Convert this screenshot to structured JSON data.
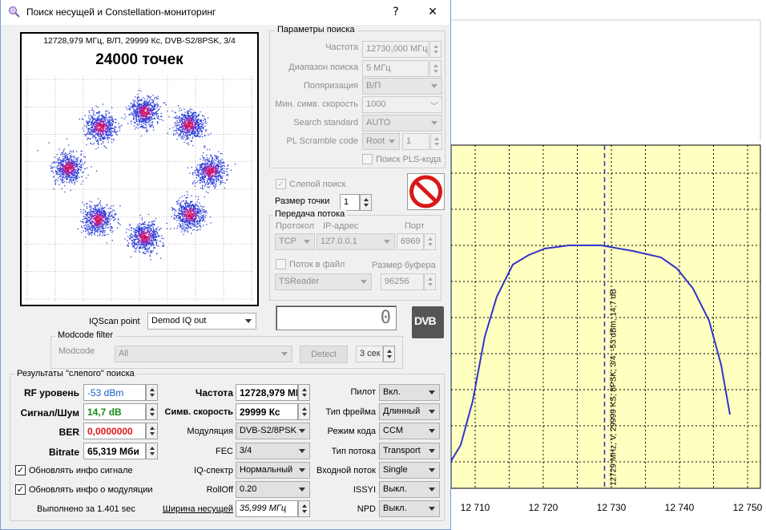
{
  "window": {
    "title": "Поиск несущей и Constellation-мониторинг",
    "help_label": "?",
    "close_label": "✕"
  },
  "constellation": {
    "header": "12728,979 МГц, В/П, 29999 Кс, DVB-S2/8PSK, 3/4",
    "points_label": "24000 точек"
  },
  "search_params": {
    "title": "Параметры поиска",
    "frequency_label": "Частота",
    "frequency_value": "12730,000 МГц",
    "range_label": "Диапазон поиска",
    "range_value": "5 МГц",
    "polarization_label": "Поляризация",
    "polarization_value": "В/П",
    "min_sr_label": "Мин. симв. скорость",
    "min_sr_value": "1000",
    "search_standard_label": "Search standard",
    "search_standard_value": "AUTO",
    "pl_scramble_label": "PL Scramble code",
    "pl_scramble_type": "Root",
    "pl_scramble_value": "1",
    "pls_search_label": "Поиск PLS-кода"
  },
  "blind": {
    "blind_search_label": "Слепой поиск",
    "point_size_label": "Размер точки",
    "point_size_value": "1",
    "stop_icon": "stop-icon"
  },
  "stream": {
    "title": "Передача потока",
    "protocol_label": "Протокол",
    "ip_label": "IP-адрес",
    "port_label": "Порт",
    "protocol_value": "TCP",
    "ip_value": "127.0.0.1",
    "port_value": "6969",
    "to_file_label": "Поток в файл",
    "buffer_label": "Размер буфера",
    "reader_value": "TSReader",
    "buffer_value": "96256"
  },
  "iqscan": {
    "label": "IQScan point",
    "value": "Demod IQ out",
    "counter": "0",
    "dvb_logo": "DVB"
  },
  "modcode": {
    "title": "Modcode filter",
    "label": "Modcode",
    "value": "All",
    "detect_label": "Detect",
    "timer_value": "3 сек"
  },
  "results": {
    "title": "Результаты \"слепого\" поиска",
    "rf_label": "RF уровень",
    "rf_value": "-53 dBm",
    "snr_label": "Сигнал/Шум",
    "snr_value": "14,7 dB",
    "ber_label": "BER",
    "ber_value": "0,0000000",
    "bitrate_label": "Bitrate",
    "bitrate_value": "65,319 Мби",
    "update_signal_label": "Обновлять инфо сигнале",
    "update_mod_label": "Обновлять инфо о модуляции",
    "elapsed_label": "Выполнено за 1.401 sec",
    "freq_label": "Частота",
    "freq_value": "12728,979 МГ",
    "sr_label": "Симв. скорость",
    "sr_value": "29999 Кс",
    "modulation_label": "Модуляция",
    "modulation_value": "DVB-S2/8PSK",
    "fec_label": "FEC",
    "fec_value": "3/4",
    "iq_label": "IQ-спектр",
    "iq_value": "Нормальный",
    "rolloff_label": "RollOff",
    "rolloff_value": "0.20",
    "bw_label": "Ширина несущей",
    "bw_value": "35,999 МГц",
    "pilot_label": "Пилот",
    "pilot_value": "Вкл.",
    "frame_label": "Тип фрейма",
    "frame_value": "Длинный",
    "code_mode_label": "Режим кода",
    "code_mode_value": "CCM",
    "stream_type_label": "Тип потока",
    "stream_type_value": "Transport",
    "input_stream_label": "Входной поток",
    "input_stream_value": "Single",
    "issyi_label": "ISSYI",
    "issyi_value": "Выкл.",
    "npd_label": "NPD",
    "npd_value": "Выкл."
  },
  "spectrum": {
    "x_ticks": [
      "12 710",
      "12 720",
      "12 730",
      "12 740",
      "12 750"
    ],
    "x_tick_values": [
      12710,
      12720,
      12730,
      12740,
      12750
    ],
    "marker_label": "12729 MHz, V, 29999 KS, 8PSK, 3/4, -53 dBm, 14,7 dB",
    "marker_mhz": 12729,
    "colors": {
      "plot_bg": "#ffffc0",
      "trace": "#3333cc",
      "grid": "#000000"
    }
  }
}
